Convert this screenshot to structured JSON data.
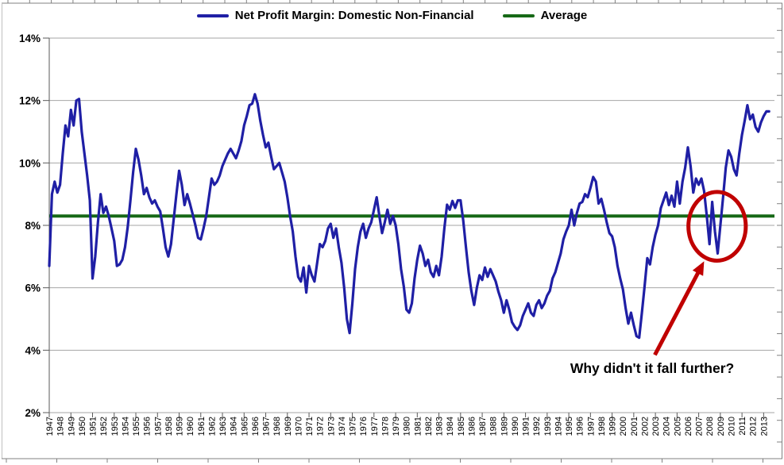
{
  "chart_data": {
    "type": "line",
    "title": "",
    "legend_position": "top",
    "grid": "horizontal",
    "y_axis": {
      "min": 2,
      "max": 14,
      "tick_step": 2,
      "unit": "%",
      "tick_values": [
        14,
        12,
        10,
        8,
        6,
        4,
        2
      ],
      "tick_labels": [
        "14%",
        "12%",
        "10%",
        "8%",
        "6%",
        "4%",
        "2%"
      ]
    },
    "x_axis": {
      "start_year": 1947,
      "end_year": 2013,
      "frequency": "quarterly",
      "labels": [
        "1947",
        "1948",
        "1949",
        "1950",
        "1951",
        "1952",
        "1953",
        "1954",
        "1955",
        "1956",
        "1957",
        "1958",
        "1959",
        "1960",
        "1961",
        "1962",
        "1963",
        "1964",
        "1965",
        "1966",
        "1967",
        "1968",
        "1969",
        "1970",
        "1971",
        "1972",
        "1973",
        "1974",
        "1975",
        "1976",
        "1977",
        "1978",
        "1979",
        "1980",
        "1981",
        "1982",
        "1983",
        "1984",
        "1985",
        "1986",
        "1987",
        "1988",
        "1989",
        "1990",
        "1991",
        "1992",
        "1993",
        "1994",
        "1995",
        "1996",
        "1997",
        "1998",
        "1999",
        "2000",
        "2001",
        "2002",
        "2003",
        "2004",
        "2005",
        "2006",
        "2007",
        "2008",
        "2009",
        "2010",
        "2011",
        "2012",
        "2013"
      ]
    },
    "series": [
      {
        "name": "Net Profit Margin: Domestic Non-Financial",
        "type": "line",
        "color": "#1F1FA5",
        "start": "1947Q1",
        "values": [
          6.7,
          9.0,
          9.4,
          9.05,
          9.3,
          10.3,
          11.2,
          10.85,
          11.7,
          11.2,
          12.0,
          12.05,
          11.0,
          10.3,
          9.6,
          8.8,
          6.3,
          7.0,
          8.1,
          9.0,
          8.4,
          8.6,
          8.3,
          7.9,
          7.5,
          6.7,
          6.75,
          6.9,
          7.3,
          7.95,
          8.8,
          9.7,
          10.45,
          10.1,
          9.6,
          9.0,
          9.2,
          8.9,
          8.7,
          8.8,
          8.6,
          8.45,
          7.9,
          7.3,
          7.0,
          7.4,
          8.2,
          9.0,
          9.75,
          9.3,
          8.65,
          9.0,
          8.7,
          8.35,
          8.0,
          7.6,
          7.55,
          7.9,
          8.3,
          8.9,
          9.5,
          9.3,
          9.4,
          9.6,
          9.9,
          10.1,
          10.3,
          10.45,
          10.3,
          10.15,
          10.4,
          10.7,
          11.2,
          11.5,
          11.85,
          11.9,
          12.2,
          11.9,
          11.35,
          10.9,
          10.5,
          10.65,
          10.2,
          9.8,
          9.9,
          10.0,
          9.7,
          9.4,
          8.9,
          8.3,
          7.8,
          7.0,
          6.35,
          6.2,
          6.65,
          5.85,
          6.7,
          6.4,
          6.2,
          6.8,
          7.4,
          7.3,
          7.5,
          7.9,
          8.05,
          7.6,
          7.9,
          7.3,
          6.8,
          6.0,
          5.0,
          4.55,
          5.5,
          6.6,
          7.3,
          7.8,
          8.05,
          7.6,
          7.9,
          8.1,
          8.5,
          8.9,
          8.3,
          7.75,
          8.1,
          8.5,
          8.05,
          8.3,
          8.0,
          7.4,
          6.6,
          6.05,
          5.3,
          5.2,
          5.5,
          6.3,
          6.9,
          7.35,
          7.1,
          6.7,
          6.9,
          6.5,
          6.35,
          6.7,
          6.4,
          7.0,
          7.9,
          8.66,
          8.5,
          8.78,
          8.56,
          8.8,
          8.8,
          8.15,
          7.3,
          6.5,
          5.9,
          5.45,
          6.0,
          6.4,
          6.25,
          6.65,
          6.35,
          6.6,
          6.4,
          6.2,
          5.87,
          5.6,
          5.2,
          5.6,
          5.3,
          4.9,
          4.75,
          4.65,
          4.8,
          5.1,
          5.3,
          5.5,
          5.2,
          5.1,
          5.45,
          5.6,
          5.35,
          5.5,
          5.75,
          5.9,
          6.3,
          6.5,
          6.8,
          7.1,
          7.55,
          7.8,
          8.0,
          8.5,
          8.0,
          8.4,
          8.7,
          8.75,
          9.0,
          8.9,
          9.2,
          9.55,
          9.4,
          8.7,
          8.85,
          8.5,
          8.1,
          7.75,
          7.65,
          7.3,
          6.7,
          6.3,
          5.95,
          5.35,
          4.85,
          5.2,
          4.8,
          4.45,
          4.4,
          5.2,
          6.05,
          6.95,
          6.75,
          7.3,
          7.7,
          8.0,
          8.55,
          8.8,
          9.05,
          8.65,
          8.95,
          8.6,
          9.4,
          8.7,
          9.4,
          9.85,
          10.5,
          9.9,
          9.05,
          9.5,
          9.3,
          9.5,
          9.1,
          8.3,
          7.4,
          8.75,
          7.8,
          7.1,
          8.0,
          8.9,
          9.85,
          10.4,
          10.2,
          9.8,
          9.6,
          10.3,
          10.9,
          11.35,
          11.85,
          11.4,
          11.55,
          11.15,
          11.0,
          11.3,
          11.5,
          11.65,
          11.65
        ]
      },
      {
        "name": "Average",
        "type": "hline",
        "color": "#176917",
        "value": 8.3
      }
    ],
    "annotation": {
      "text": "Why didn't it fall further?",
      "color": "#C00000",
      "text_color": "#000000",
      "text_at": {
        "year": 2002.7,
        "value": 3.27
      },
      "circle": {
        "year": 2008.7,
        "value": 7.97,
        "rx_years": 2.65,
        "ry_pct": 1.1
      },
      "arrow": {
        "from": {
          "year": 2002.95,
          "value": 3.85
        },
        "to": {
          "year": 2007.5,
          "value": 6.85
        }
      }
    },
    "style": {
      "gridline_color": "#A6A6A6",
      "axis_color": "#595959",
      "ruler_color": "#808080",
      "label_color": "#000000"
    }
  }
}
